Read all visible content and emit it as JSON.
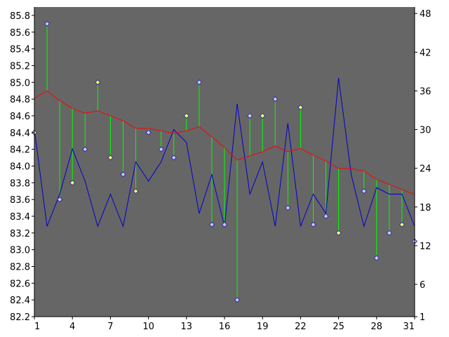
{
  "chart_data": {
    "type": "line",
    "x": [
      1,
      2,
      3,
      4,
      5,
      6,
      7,
      8,
      9,
      10,
      11,
      12,
      13,
      14,
      15,
      16,
      17,
      18,
      19,
      20,
      21,
      22,
      23,
      24,
      25,
      26,
      27,
      28,
      29,
      30,
      31
    ],
    "x_ticks": [
      "1",
      "4",
      "7",
      "10",
      "13",
      "16",
      "19",
      "22",
      "25",
      "28",
      "31"
    ],
    "x_tick_values": [
      1,
      4,
      7,
      10,
      13,
      16,
      19,
      22,
      25,
      28,
      31
    ],
    "left_axis": {
      "ylim": [
        82.2,
        85.9
      ],
      "ticks": [
        "82.2",
        "82.4",
        "82.6",
        "82.8",
        "83.0",
        "83.2",
        "83.4",
        "83.6",
        "83.8",
        "84.0",
        "84.2",
        "84.4",
        "84.6",
        "84.8",
        "85.0",
        "85.2",
        "85.4",
        "85.6",
        "85.8"
      ],
      "tick_values": [
        82.2,
        82.4,
        82.6,
        82.8,
        83.0,
        83.2,
        83.4,
        83.6,
        83.8,
        84.0,
        84.2,
        84.4,
        84.6,
        84.8,
        85.0,
        85.2,
        85.4,
        85.6,
        85.8
      ]
    },
    "right_axis": {
      "ylim": [
        1,
        49
      ],
      "ticks": [
        "1",
        "6",
        "12",
        "18",
        "24",
        "30",
        "36",
        "42",
        "48"
      ],
      "tick_values": [
        1,
        6,
        12,
        18,
        24,
        30,
        36,
        42,
        48
      ]
    },
    "series": [
      {
        "axis": "left",
        "style": "markers-with-drops",
        "values": [
          84.4,
          85.7,
          83.6,
          83.8,
          84.2,
          85.0,
          84.1,
          83.9,
          83.7,
          84.4,
          84.2,
          84.1,
          84.6,
          85.0,
          83.3,
          83.3,
          82.4,
          84.6,
          84.6,
          84.8,
          83.5,
          84.7,
          83.3,
          83.4,
          83.2,
          null,
          83.7,
          82.9,
          83.2,
          83.3,
          83.1
        ],
        "marker_colors": [
          "#ffff66",
          "#c8c8ff",
          "#c8c8ff",
          "#ffff66",
          "#c8c8ff",
          "#ffff66",
          "#ffff66",
          "#c8c8ff",
          "#ffff66",
          "#c8c8ff",
          "#c8c8ff",
          "#c8c8ff",
          "#ffff66",
          "#c8c8ff",
          "#c8c8ff",
          "#c8c8ff",
          "#c8c8ff",
          "#c8c8ff",
          "#ffff66",
          "#c8c8ff",
          "#c8c8ff",
          "#ffff66",
          "#c8c8ff",
          "#c8c8ff",
          "#ffff66",
          null,
          "#c8c8ff",
          "#c8c8ff",
          "#c8c8ff",
          "#ffff66",
          "#c8c8ff"
        ]
      },
      {
        "axis": "left",
        "style": "line",
        "values": [
          84.81,
          84.9,
          84.78,
          84.69,
          84.63,
          84.66,
          84.6,
          84.54,
          84.45,
          84.45,
          84.42,
          84.39,
          84.42,
          84.47,
          84.35,
          84.22,
          84.07,
          84.12,
          84.17,
          84.24,
          84.17,
          84.21,
          84.13,
          84.06,
          83.97,
          83.97,
          83.94,
          83.84,
          83.78,
          83.72,
          83.66
        ]
      },
      {
        "axis": "right",
        "style": "line",
        "values": [
          30,
          15,
          20,
          27,
          22,
          15,
          20,
          15,
          25,
          22,
          25,
          30,
          28,
          17,
          23,
          15,
          34,
          20,
          25,
          15,
          31,
          15,
          20,
          17,
          38,
          23,
          15,
          21,
          20,
          20,
          15
        ]
      }
    ],
    "colors": {
      "plot_background": "#666666",
      "drop_line": "#00ff00",
      "average_line": "#ff0000",
      "right_series_line": "#0000cc",
      "marker_outline": "#333399"
    },
    "grid": false
  }
}
